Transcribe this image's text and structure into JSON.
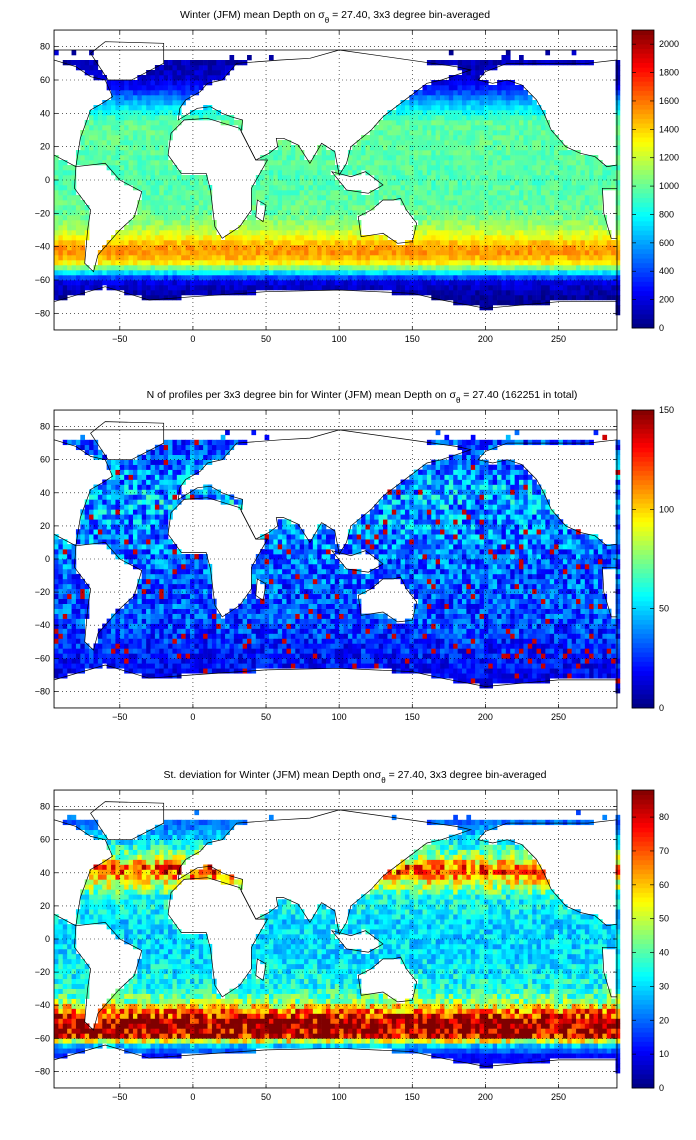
{
  "chart_data": [
    {
      "type": "heatmap",
      "id": "mean_depth",
      "title": "Winter (JFM) mean Depth on σθ = 27.40, 3x3 degree bin-averaged",
      "title_pre": "Winter (JFM) mean Depth on σ",
      "title_sub": "θ",
      "title_post": " = 27.40, 3x3 degree bin-averaged",
      "xlim": [
        -95,
        290
      ],
      "ylim": [
        -90,
        90
      ],
      "xticks": [
        -50,
        0,
        50,
        100,
        150,
        200,
        250
      ],
      "yticks": [
        -80,
        -60,
        -40,
        -20,
        0,
        20,
        40,
        60,
        80
      ],
      "grid": true,
      "colormap": "jet",
      "clim": [
        0,
        2100
      ],
      "cbar_ticks": [
        0,
        200,
        400,
        600,
        800,
        1000,
        1200,
        1400,
        1600,
        1800,
        2000
      ],
      "bin_deg": 3,
      "latitude_profile": [
        [
          -78,
          0
        ],
        [
          -72,
          50
        ],
        [
          -66,
          110
        ],
        [
          -60,
          230
        ],
        [
          -54,
          900
        ],
        [
          -50,
          1300
        ],
        [
          -46,
          1480
        ],
        [
          -42,
          1550
        ],
        [
          -38,
          1450
        ],
        [
          -34,
          1280
        ],
        [
          -28,
          1120
        ],
        [
          -20,
          1000
        ],
        [
          0,
          950
        ],
        [
          20,
          980
        ],
        [
          35,
          980
        ],
        [
          45,
          700
        ],
        [
          55,
          300
        ],
        [
          62,
          150
        ],
        [
          75,
          100
        ]
      ]
    },
    {
      "type": "heatmap",
      "id": "profile_count",
      "title": "N of profiles per 3x3 degree bin for Winter (JFM) mean Depth on σθ = 27.40 (162251 in total)",
      "title_pre": "N of profiles per 3x3 degree bin for Winter (JFM) mean Depth on σ",
      "title_sub": "θ",
      "title_post": " = 27.40 (162251 in total)",
      "total_profiles": 162251,
      "xlim": [
        -95,
        290
      ],
      "ylim": [
        -90,
        90
      ],
      "xticks": [
        -50,
        0,
        50,
        100,
        150,
        200,
        250
      ],
      "yticks": [
        -80,
        -60,
        -40,
        -20,
        0,
        20,
        40,
        60,
        80
      ],
      "grid": true,
      "colormap": "jet",
      "clim": [
        0,
        150
      ],
      "cbar_ticks": [
        0,
        50,
        100,
        150
      ],
      "bin_deg": 3,
      "latitude_profile": [
        [
          -78,
          10
        ],
        [
          -70,
          18
        ],
        [
          -60,
          22
        ],
        [
          -40,
          30
        ],
        [
          -20,
          32
        ],
        [
          0,
          35
        ],
        [
          20,
          40
        ],
        [
          35,
          45
        ],
        [
          50,
          40
        ],
        [
          65,
          30
        ]
      ]
    },
    {
      "type": "heatmap",
      "id": "std_dev",
      "title": "St. deviation for Winter (JFM) mean Depth onσθ = 27.40, 3x3 degree bin-averaged",
      "title_pre": "St. deviation for Winter (JFM) mean Depth onσ",
      "title_sub": "θ",
      "title_post": " = 27.40, 3x3 degree bin-averaged",
      "xlim": [
        -95,
        290
      ],
      "ylim": [
        -90,
        90
      ],
      "xticks": [
        -50,
        0,
        50,
        100,
        150,
        200,
        250
      ],
      "yticks": [
        -80,
        -60,
        -40,
        -20,
        0,
        20,
        40,
        60,
        80
      ],
      "grid": true,
      "colormap": "jet",
      "clim": [
        0,
        88
      ],
      "cbar_ticks": [
        0,
        10,
        20,
        30,
        40,
        50,
        60,
        70,
        80
      ],
      "bin_deg": 3,
      "latitude_profile": [
        [
          -78,
          8
        ],
        [
          -70,
          12
        ],
        [
          -64,
          30
        ],
        [
          -58,
          85
        ],
        [
          -50,
          88
        ],
        [
          -44,
          70
        ],
        [
          -38,
          45
        ],
        [
          -30,
          35
        ],
        [
          -10,
          30
        ],
        [
          10,
          30
        ],
        [
          25,
          35
        ],
        [
          35,
          55
        ],
        [
          42,
          75
        ],
        [
          50,
          45
        ],
        [
          60,
          30
        ],
        [
          70,
          20
        ]
      ]
    }
  ]
}
